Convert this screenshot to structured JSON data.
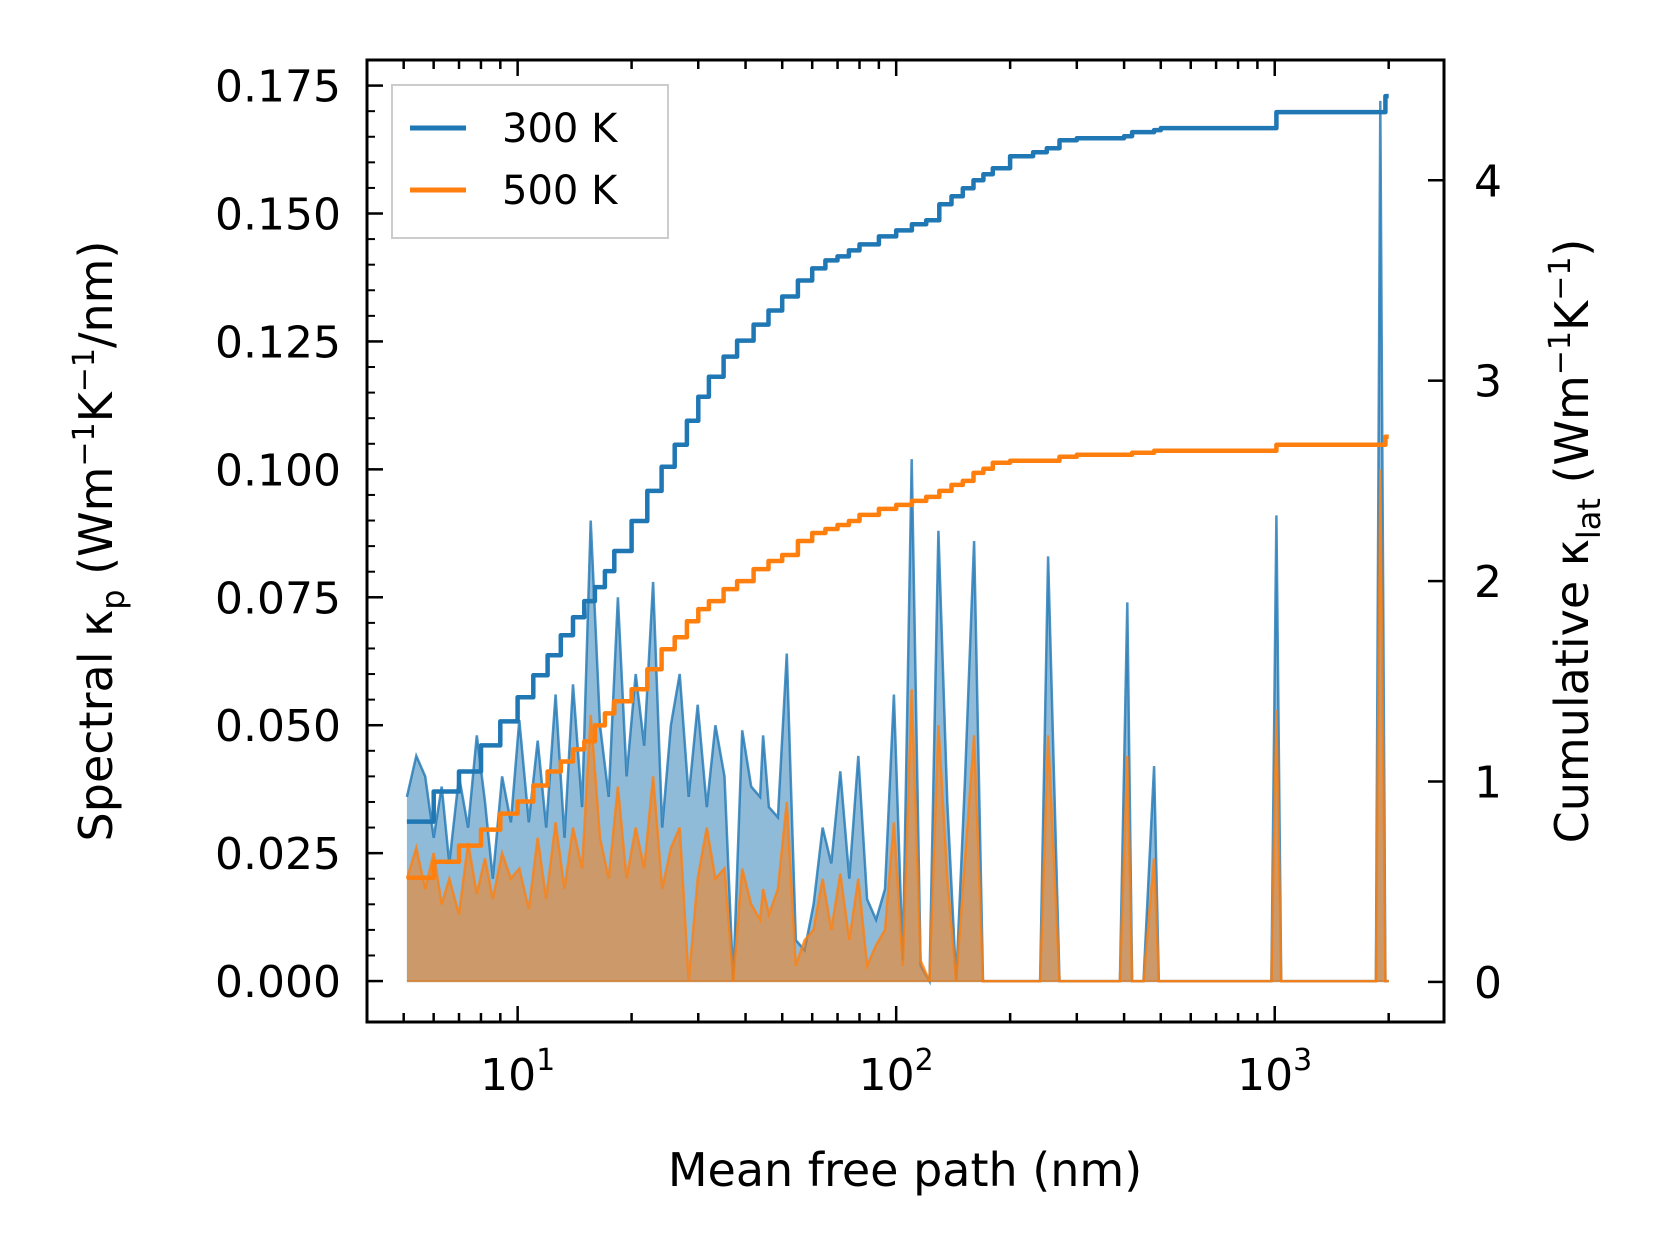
{
  "chart_data": {
    "type": "line",
    "xscale": "log",
    "xlabel": "Mean free path (nm)",
    "ylabel_left": {
      "main": "Spectral κ",
      "sub": "p",
      "units_open": " (Wm",
      "exp1": "−1",
      "mid": "K",
      "exp2": "−1",
      "units_close": "/nm)"
    },
    "ylabel_right": {
      "main": "Cumulative κ",
      "sub": "lat",
      "units_open": " (Wm",
      "exp1": "−1",
      "mid": "K",
      "exp2": "−1",
      "units_close": ")"
    },
    "xlim": [
      4.0,
      2800
    ],
    "ylim_left": [
      -0.008,
      0.18
    ],
    "ylim_right": [
      -0.2,
      4.6
    ],
    "x_ticks": [
      {
        "value": 10,
        "base": "10",
        "exp": "1"
      },
      {
        "value": 100,
        "base": "10",
        "exp": "2"
      },
      {
        "value": 1000,
        "base": "10",
        "exp": "3"
      }
    ],
    "y_left_ticks": [
      {
        "value": 0.0,
        "label": "0.000"
      },
      {
        "value": 0.025,
        "label": "0.025"
      },
      {
        "value": 0.05,
        "label": "0.050"
      },
      {
        "value": 0.075,
        "label": "0.075"
      },
      {
        "value": 0.1,
        "label": "0.100"
      },
      {
        "value": 0.125,
        "label": "0.125"
      },
      {
        "value": 0.15,
        "label": "0.150"
      },
      {
        "value": 0.175,
        "label": "0.175"
      }
    ],
    "y_right_ticks": [
      {
        "value": 0,
        "label": "0"
      },
      {
        "value": 1,
        "label": "1"
      },
      {
        "value": 2,
        "label": "2"
      },
      {
        "value": 3,
        "label": "3"
      },
      {
        "value": 4,
        "label": "4"
      }
    ],
    "legend": {
      "position": "top-left",
      "entries": [
        {
          "label": "300 K",
          "color": "#1f77b4"
        },
        {
          "label": "500 K",
          "color": "#ff7f0e"
        }
      ]
    },
    "series": [
      {
        "name": "300 K spectral",
        "axis": "left",
        "color": "#1f77b4",
        "x": [
          5.1,
          5.4,
          5.7,
          6.0,
          6.3,
          6.6,
          7.0,
          7.4,
          7.8,
          8.2,
          8.6,
          9.1,
          9.6,
          10.1,
          10.7,
          11.3,
          11.9,
          12.6,
          13.3,
          14.0,
          14.8,
          15.6,
          16.5,
          17.4,
          18.4,
          19.4,
          20.5,
          21.6,
          22.8,
          24.1,
          25.4,
          26.8,
          28.3,
          29.9,
          31.6,
          33.3,
          35.2,
          37.1,
          39.2,
          41.4,
          43.7,
          44.5,
          46.1,
          48.7,
          51.4,
          54.3,
          57.3,
          60.5,
          63.9,
          67.4,
          71.2,
          75.2,
          79.4,
          83.8,
          88.5,
          93.4,
          98.6,
          104.1,
          109.9,
          116.0,
          122.5,
          129.3,
          136.5,
          144.1,
          152.1,
          160.6,
          169.6,
          179.0,
          189.0,
          199.5,
          210.6,
          240,
          252,
          270,
          290,
          390,
          408,
          420,
          450,
          480,
          494,
          510,
          980,
          1010,
          1040,
          1850,
          1900,
          1960,
          2000
        ],
        "y": [
          0.036,
          0.044,
          0.04,
          0.028,
          0.038,
          0.023,
          0.04,
          0.03,
          0.048,
          0.035,
          0.02,
          0.04,
          0.031,
          0.051,
          0.031,
          0.047,
          0.03,
          0.056,
          0.028,
          0.058,
          0.034,
          0.09,
          0.05,
          0.036,
          0.075,
          0.04,
          0.06,
          0.046,
          0.078,
          0.03,
          0.05,
          0.06,
          0.036,
          0.054,
          0.034,
          0.05,
          0.04,
          0.0,
          0.049,
          0.038,
          0.036,
          0.048,
          0.034,
          0.032,
          0.064,
          0.008,
          0.006,
          0.015,
          0.03,
          0.023,
          0.041,
          0.02,
          0.044,
          0.016,
          0.012,
          0.018,
          0.056,
          0.004,
          0.102,
          0.003,
          0.0,
          0.088,
          0.035,
          0.0,
          0.04,
          0.086,
          0.0,
          0.0,
          0.0,
          0.0,
          0.0,
          0.0,
          0.083,
          0.0,
          0.0,
          0.0,
          0.074,
          0.0,
          0.0,
          0.042,
          0.0,
          0.0,
          0.0,
          0.091,
          0.0,
          0.0,
          0.172,
          0.0,
          0.0
        ]
      },
      {
        "name": "500 K spectral",
        "axis": "left",
        "color": "#ff7f0e",
        "x": [
          5.1,
          5.4,
          5.7,
          6.0,
          6.3,
          6.6,
          7.0,
          7.4,
          7.8,
          8.2,
          8.6,
          9.1,
          9.6,
          10.1,
          10.7,
          11.3,
          11.9,
          12.6,
          13.3,
          14.0,
          14.8,
          15.6,
          16.5,
          17.4,
          18.4,
          19.4,
          20.5,
          21.6,
          22.8,
          24.1,
          25.4,
          26.8,
          28.3,
          29.9,
          31.6,
          33.3,
          35.2,
          37.1,
          39.2,
          41.4,
          43.7,
          44.5,
          46.1,
          48.7,
          51.4,
          54.3,
          57.3,
          60.5,
          63.9,
          67.4,
          71.2,
          75.2,
          79.4,
          83.8,
          88.5,
          93.4,
          98.6,
          104.1,
          109.9,
          116.0,
          122.5,
          129.3,
          136.5,
          144.1,
          152.1,
          160.6,
          169.6,
          179.0,
          189.0,
          199.5,
          210.6,
          240,
          252,
          270,
          290,
          390,
          408,
          420,
          450,
          480,
          494,
          510,
          980,
          1010,
          1040,
          1850,
          1900,
          1960,
          2000
        ],
        "y": [
          0.02,
          0.026,
          0.018,
          0.025,
          0.015,
          0.02,
          0.013,
          0.027,
          0.017,
          0.024,
          0.016,
          0.025,
          0.02,
          0.022,
          0.014,
          0.028,
          0.016,
          0.031,
          0.018,
          0.03,
          0.022,
          0.052,
          0.028,
          0.02,
          0.038,
          0.02,
          0.03,
          0.022,
          0.04,
          0.018,
          0.026,
          0.03,
          0.0,
          0.02,
          0.03,
          0.02,
          0.022,
          0.0,
          0.022,
          0.015,
          0.012,
          0.018,
          0.013,
          0.018,
          0.035,
          0.003,
          0.008,
          0.01,
          0.02,
          0.01,
          0.021,
          0.008,
          0.02,
          0.003,
          0.007,
          0.01,
          0.031,
          0.003,
          0.057,
          0.004,
          0.0,
          0.05,
          0.02,
          0.0,
          0.024,
          0.048,
          0.0,
          0.0,
          0.0,
          0.0,
          0.0,
          0.0,
          0.048,
          0.0,
          0.0,
          0.0,
          0.044,
          0.0,
          0.0,
          0.024,
          0.0,
          0.0,
          0.0,
          0.053,
          0.0,
          0.0,
          0.1,
          0.0,
          0.0
        ]
      },
      {
        "name": "300 K",
        "axis": "right",
        "color": "#1f77b4",
        "x": [
          5.1,
          6.0,
          7.0,
          8.0,
          9.0,
          10.0,
          11.0,
          12.0,
          13.0,
          14.0,
          15.0,
          16.0,
          17.0,
          18.0,
          20.0,
          22.0,
          24.0,
          26.0,
          28.0,
          30.0,
          32.0,
          35.0,
          38.0,
          42.0,
          46.0,
          50.0,
          55.0,
          60.0,
          65.0,
          70.0,
          75.0,
          80.0,
          90.0,
          100.0,
          110.0,
          120.0,
          130.0,
          140.0,
          150.0,
          160.0,
          170.0,
          180.0,
          200.0,
          230.0,
          250.0,
          270.0,
          300.0,
          350.0,
          400.0,
          420.0,
          480.0,
          500.0,
          1000.0,
          1010.0,
          1800.0,
          1900.0,
          1960.0,
          2000.0
        ],
        "y": [
          0.8,
          0.95,
          1.05,
          1.18,
          1.3,
          1.42,
          1.53,
          1.63,
          1.73,
          1.82,
          1.9,
          1.97,
          2.05,
          2.15,
          2.3,
          2.45,
          2.57,
          2.68,
          2.8,
          2.92,
          3.02,
          3.12,
          3.2,
          3.28,
          3.35,
          3.42,
          3.5,
          3.56,
          3.6,
          3.62,
          3.65,
          3.68,
          3.72,
          3.75,
          3.78,
          3.8,
          3.88,
          3.92,
          3.96,
          4.0,
          4.03,
          4.06,
          4.12,
          4.14,
          4.16,
          4.2,
          4.21,
          4.21,
          4.22,
          4.24,
          4.25,
          4.26,
          4.26,
          4.34,
          4.34,
          4.34,
          4.42,
          4.42
        ]
      },
      {
        "name": "500 K",
        "axis": "right",
        "color": "#ff7f0e",
        "x": [
          5.1,
          6.0,
          7.0,
          8.0,
          9.0,
          10.0,
          11.0,
          12.0,
          13.0,
          14.0,
          15.0,
          16.0,
          17.0,
          18.0,
          20.0,
          22.0,
          24.0,
          26.0,
          28.0,
          30.0,
          32.0,
          35.0,
          38.0,
          42.0,
          46.0,
          50.0,
          55.0,
          60.0,
          65.0,
          70.0,
          75.0,
          80.0,
          90.0,
          100.0,
          110.0,
          120.0,
          130.0,
          140.0,
          150.0,
          160.0,
          170.0,
          180.0,
          200.0,
          230.0,
          250.0,
          270.0,
          300.0,
          350.0,
          400.0,
          420.0,
          480.0,
          500.0,
          1000.0,
          1010.0,
          1800.0,
          1900.0,
          1960.0,
          2000.0
        ],
        "y": [
          0.52,
          0.6,
          0.68,
          0.76,
          0.84,
          0.9,
          0.98,
          1.05,
          1.1,
          1.16,
          1.2,
          1.28,
          1.34,
          1.4,
          1.46,
          1.56,
          1.66,
          1.72,
          1.8,
          1.86,
          1.9,
          1.96,
          2.0,
          2.06,
          2.1,
          2.13,
          2.2,
          2.24,
          2.26,
          2.28,
          2.3,
          2.33,
          2.36,
          2.38,
          2.4,
          2.42,
          2.45,
          2.48,
          2.5,
          2.54,
          2.56,
          2.59,
          2.6,
          2.6,
          2.6,
          2.62,
          2.63,
          2.63,
          2.63,
          2.64,
          2.65,
          2.65,
          2.65,
          2.68,
          2.68,
          2.68,
          2.72,
          2.72
        ]
      }
    ]
  }
}
